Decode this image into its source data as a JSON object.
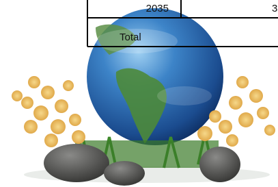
{
  "table": {
    "rows": [
      [
        "2035",
        "3"
      ],
      [
        "Total"
      ]
    ]
  }
}
